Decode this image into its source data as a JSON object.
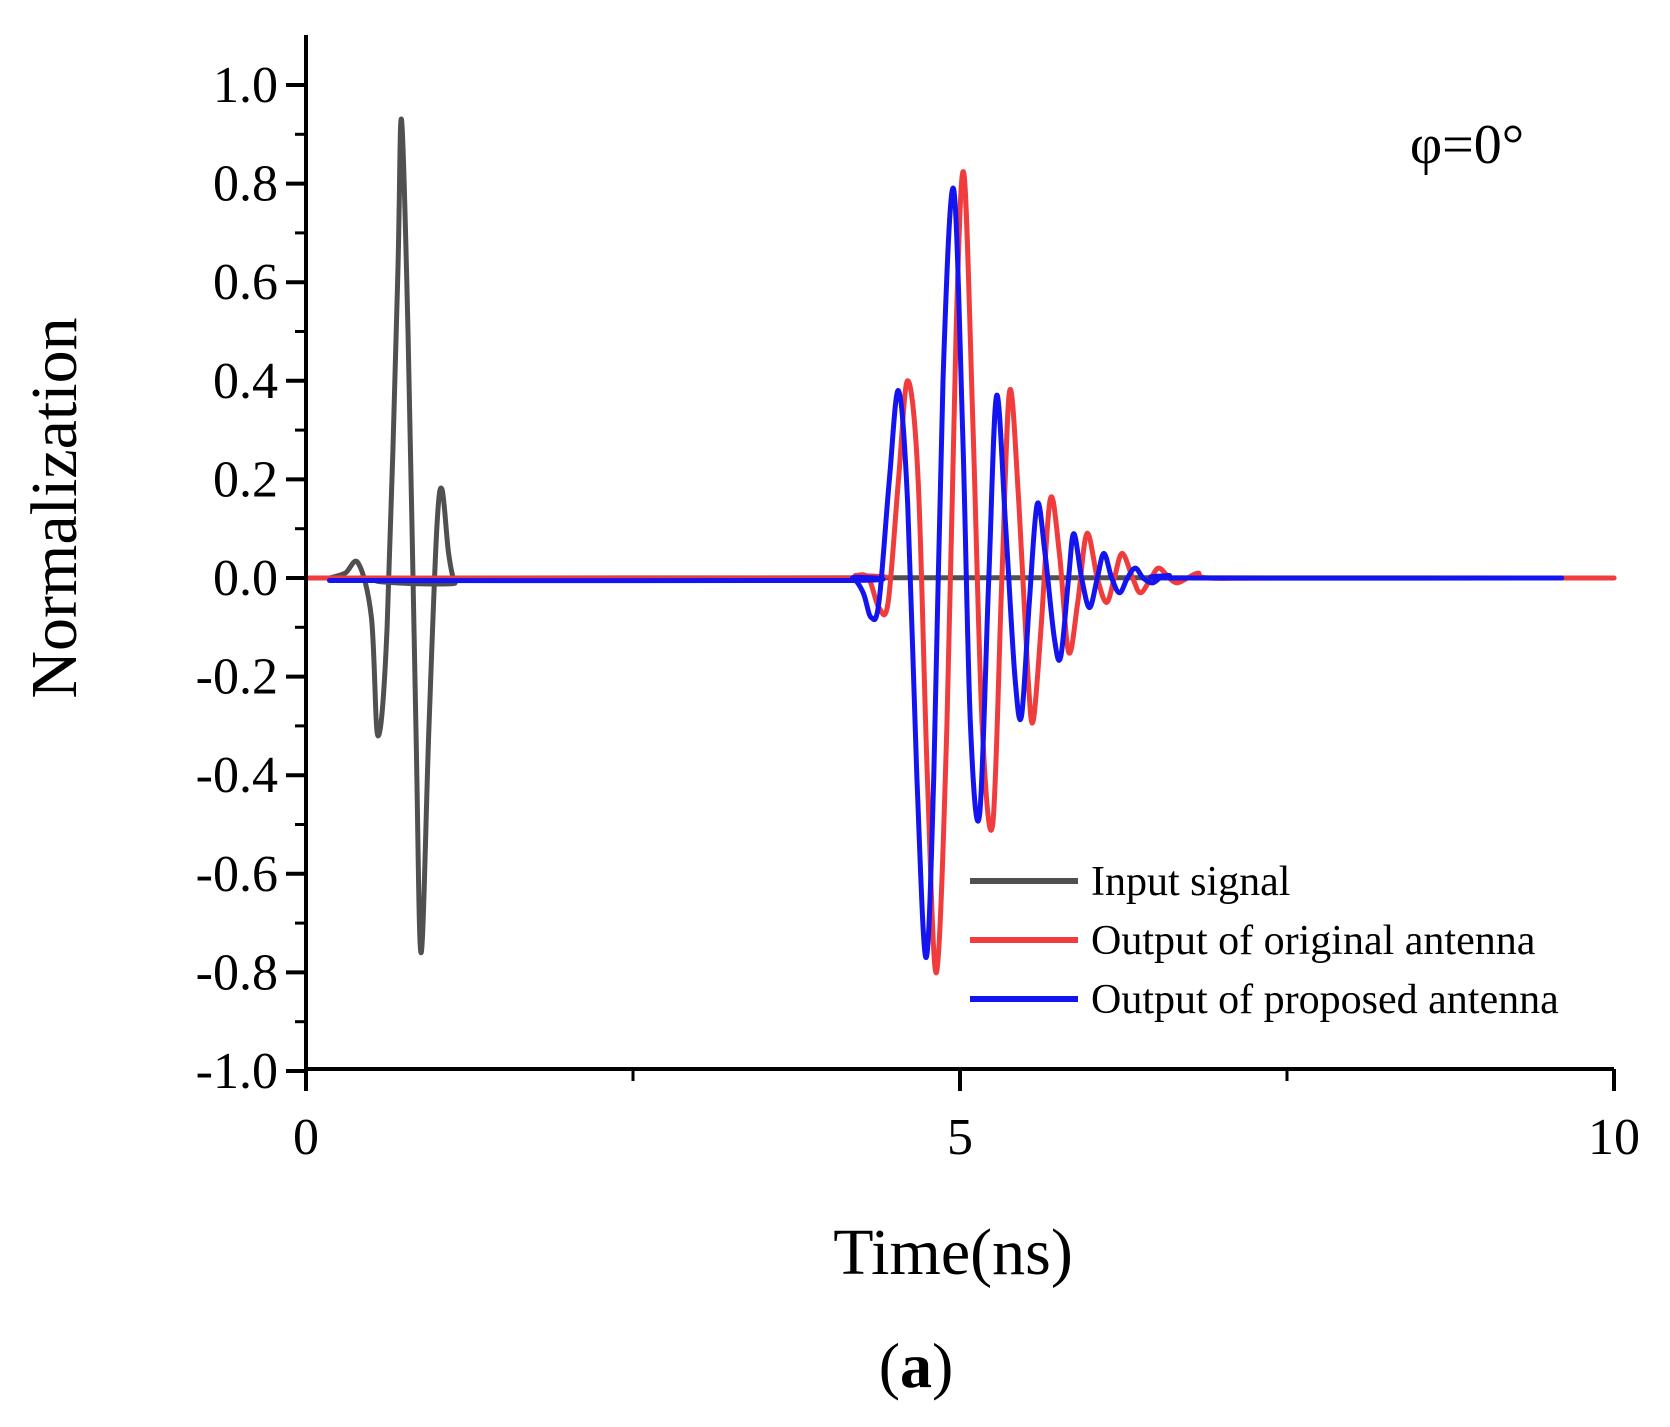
{
  "chart_data": {
    "type": "line",
    "title": "",
    "annotation": "φ=0°",
    "panel_label": {
      "open": "(",
      "letter": "a",
      "close": ")"
    },
    "xlabel": "Time(ns)",
    "ylabel": "Normalization",
    "xlim": [
      0,
      10
    ],
    "ylim": [
      -1.0,
      1.1
    ],
    "xticks": [
      0,
      5,
      10
    ],
    "xtick_labels": [
      "0",
      "5",
      "10"
    ],
    "x_minor_ticks": [
      2.5,
      7.5
    ],
    "yticks": [
      -1.0,
      -0.8,
      -0.6,
      -0.4,
      -0.2,
      0.0,
      0.2,
      0.4,
      0.6,
      0.8,
      1.0
    ],
    "ytick_labels": [
      "-1.0",
      "-0.8",
      "-0.6",
      "-0.4",
      "-0.2",
      "0.0",
      "0.2",
      "0.4",
      "0.6",
      "0.8",
      "1.0"
    ],
    "legend_position": "lower-right",
    "series": [
      {
        "name": "Input signal",
        "color": "#505050",
        "points": [
          [
            0.18,
            0.0
          ],
          [
            0.3,
            0.01
          ],
          [
            0.4,
            0.03
          ],
          [
            0.5,
            -0.08
          ],
          [
            0.55,
            -0.32
          ],
          [
            0.62,
            -0.1
          ],
          [
            0.7,
            0.6
          ],
          [
            0.73,
            0.93
          ],
          [
            0.78,
            0.5
          ],
          [
            0.84,
            -0.3
          ],
          [
            0.88,
            -0.76
          ],
          [
            0.94,
            -0.3
          ],
          [
            1.0,
            0.1
          ],
          [
            1.04,
            0.18
          ],
          [
            1.09,
            0.05
          ],
          [
            1.14,
            -0.01
          ],
          [
            1.2,
            0.0
          ],
          [
            10.0,
            0.0
          ]
        ]
      },
      {
        "name": "Output of original antenna",
        "color": "#f03c3c",
        "points": [
          [
            0.0,
            0.0
          ],
          [
            4.1,
            0.0
          ],
          [
            4.2,
            0.005
          ],
          [
            4.3,
            0.0
          ],
          [
            4.38,
            -0.06
          ],
          [
            4.45,
            -0.05
          ],
          [
            4.53,
            0.2
          ],
          [
            4.6,
            0.4
          ],
          [
            4.68,
            0.2
          ],
          [
            4.75,
            -0.4
          ],
          [
            4.82,
            -0.8
          ],
          [
            4.9,
            -0.3
          ],
          [
            4.97,
            0.5
          ],
          [
            5.03,
            0.82
          ],
          [
            5.1,
            0.3
          ],
          [
            5.17,
            -0.3
          ],
          [
            5.25,
            -0.5
          ],
          [
            5.32,
            0.0
          ],
          [
            5.38,
            0.38
          ],
          [
            5.45,
            0.15
          ],
          [
            5.52,
            -0.2
          ],
          [
            5.56,
            -0.29
          ],
          [
            5.62,
            -0.1
          ],
          [
            5.69,
            0.16
          ],
          [
            5.76,
            0.05
          ],
          [
            5.83,
            -0.15
          ],
          [
            5.9,
            -0.05
          ],
          [
            5.97,
            0.09
          ],
          [
            6.05,
            0.0
          ],
          [
            6.12,
            -0.05
          ],
          [
            6.18,
            0.0
          ],
          [
            6.24,
            0.05
          ],
          [
            6.32,
            0.0
          ],
          [
            6.38,
            -0.03
          ],
          [
            6.46,
            0.0
          ],
          [
            6.52,
            0.02
          ],
          [
            6.6,
            0.0
          ],
          [
            6.66,
            -0.01
          ],
          [
            6.74,
            0.0
          ],
          [
            6.82,
            0.01
          ],
          [
            6.9,
            0.0
          ],
          [
            7.5,
            0.0
          ],
          [
            10.0,
            0.0
          ]
        ]
      },
      {
        "name": "Output of proposed antenna",
        "color": "#1414f0",
        "points": [
          [
            0.18,
            -0.005
          ],
          [
            4.1,
            -0.005
          ],
          [
            4.18,
            0.0
          ],
          [
            4.26,
            -0.03
          ],
          [
            4.32,
            -0.08
          ],
          [
            4.38,
            -0.05
          ],
          [
            4.46,
            0.2
          ],
          [
            4.53,
            0.38
          ],
          [
            4.6,
            0.15
          ],
          [
            4.67,
            -0.4
          ],
          [
            4.74,
            -0.77
          ],
          [
            4.8,
            -0.4
          ],
          [
            4.87,
            0.4
          ],
          [
            4.95,
            0.79
          ],
          [
            5.02,
            0.3
          ],
          [
            5.08,
            -0.3
          ],
          [
            5.15,
            -0.48
          ],
          [
            5.22,
            0.0
          ],
          [
            5.28,
            0.37
          ],
          [
            5.35,
            0.1
          ],
          [
            5.42,
            -0.2
          ],
          [
            5.47,
            -0.28
          ],
          [
            5.53,
            -0.05
          ],
          [
            5.59,
            0.15
          ],
          [
            5.65,
            0.05
          ],
          [
            5.72,
            -0.12
          ],
          [
            5.77,
            -0.16
          ],
          [
            5.83,
            0.0
          ],
          [
            5.87,
            0.09
          ],
          [
            5.93,
            0.0
          ],
          [
            5.99,
            -0.06
          ],
          [
            6.05,
            0.0
          ],
          [
            6.1,
            0.05
          ],
          [
            6.16,
            0.0
          ],
          [
            6.22,
            -0.03
          ],
          [
            6.28,
            0.0
          ],
          [
            6.34,
            0.02
          ],
          [
            6.4,
            0.0
          ],
          [
            6.47,
            -0.01
          ],
          [
            6.53,
            0.0
          ],
          [
            6.6,
            0.005
          ],
          [
            6.7,
            0.0
          ],
          [
            9.6,
            0.0
          ]
        ]
      }
    ]
  }
}
